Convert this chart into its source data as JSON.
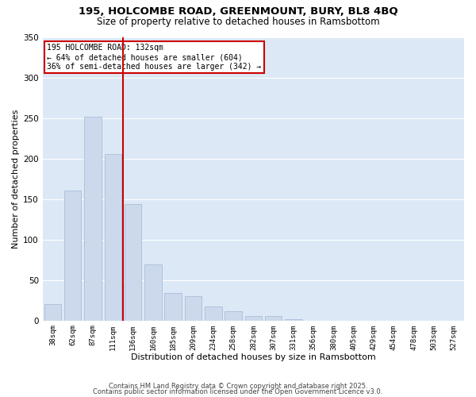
{
  "title": "195, HOLCOMBE ROAD, GREENMOUNT, BURY, BL8 4BQ",
  "subtitle": "Size of property relative to detached houses in Ramsbottom",
  "xlabel": "Distribution of detached houses by size in Ramsbottom",
  "ylabel": "Number of detached properties",
  "bar_labels": [
    "38sqm",
    "62sqm",
    "87sqm",
    "111sqm",
    "136sqm",
    "160sqm",
    "185sqm",
    "209sqm",
    "234sqm",
    "258sqm",
    "282sqm",
    "307sqm",
    "331sqm",
    "356sqm",
    "380sqm",
    "405sqm",
    "429sqm",
    "454sqm",
    "478sqm",
    "503sqm",
    "527sqm"
  ],
  "bar_values": [
    20,
    160,
    252,
    205,
    144,
    69,
    34,
    30,
    17,
    11,
    6,
    6,
    2,
    0,
    0,
    0,
    0,
    0,
    0,
    0,
    0
  ],
  "bar_color": "#ccd9ec",
  "bar_edge_color": "#aabdd8",
  "vline_x_idx": 4,
  "vline_color": "#cc0000",
  "annotation_title": "195 HOLCOMBE ROAD: 132sqm",
  "annotation_line1": "← 64% of detached houses are smaller (604)",
  "annotation_line2": "36% of semi-detached houses are larger (342) →",
  "annotation_box_facecolor": "#ffffff",
  "annotation_box_edgecolor": "#cc0000",
  "ylim": [
    0,
    350
  ],
  "yticks": [
    0,
    50,
    100,
    150,
    200,
    250,
    300,
    350
  ],
  "plot_bg_color": "#dce8f5",
  "fig_bg_color": "#ffffff",
  "grid_color": "#ffffff",
  "footer1": "Contains HM Land Registry data © Crown copyright and database right 2025.",
  "footer2": "Contains public sector information licensed under the Open Government Licence v3.0."
}
